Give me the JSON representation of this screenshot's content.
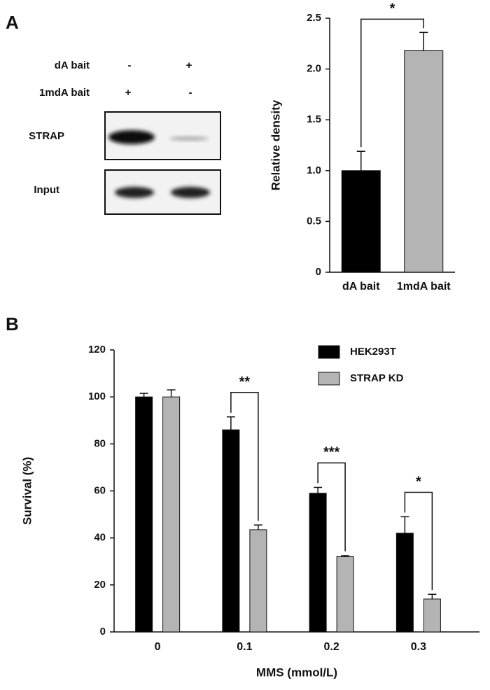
{
  "panels": [
    "A",
    "B"
  ],
  "blot": {
    "rows": [
      {
        "label": "dA bait",
        "marks": [
          "-",
          "+"
        ]
      },
      {
        "label": "1mdA bait",
        "marks": [
          "+",
          "-"
        ]
      }
    ],
    "bands": [
      "STRAP",
      "Input"
    ]
  },
  "chart_data": [
    {
      "type": "bar",
      "categories": [
        "dA bait",
        "1mdA bait"
      ],
      "values": [
        1.0,
        2.18
      ],
      "errors": [
        0.19,
        0.18
      ],
      "colors": [
        "#000000",
        "#b4b4b4"
      ],
      "y_label": "Relative density",
      "ylim": [
        0,
        2.5
      ],
      "yticks": [
        0,
        0.5,
        {
          "value": 1,
          "label": "1.0"
        },
        1.5,
        {
          "value": 2,
          "label": "2.0"
        },
        2.5
      ],
      "significance": "*"
    },
    {
      "type": "bar",
      "categories": [
        "0",
        "0.1",
        "0.2",
        "0.3"
      ],
      "series": [
        {
          "name": "HEK293T",
          "color": "#000000",
          "values": [
            100,
            86,
            59,
            42
          ],
          "errors": [
            1.5,
            5.5,
            2.5,
            7
          ]
        },
        {
          "name": "STRAP KD",
          "color": "#b4b4b4",
          "values": [
            100,
            43.5,
            32,
            14
          ],
          "errors": [
            3,
            2,
            0.5,
            2
          ]
        }
      ],
      "x_label": "MMS (mmol/L)",
      "y_label": "Survival (%)",
      "ylim": [
        0,
        120
      ],
      "yticks": [
        0,
        20,
        40,
        60,
        80,
        100,
        120
      ],
      "significance": [
        null,
        "**",
        "***",
        "*"
      ]
    }
  ]
}
